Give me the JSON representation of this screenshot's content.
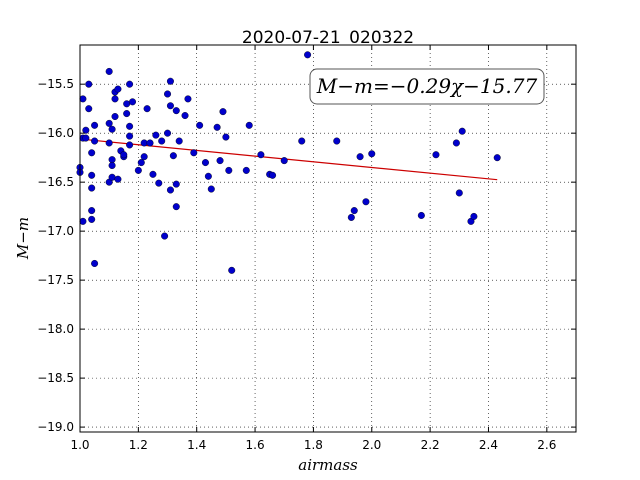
{
  "chart_data": {
    "type": "scatter",
    "title": "2020-07-21_020322",
    "xlabel": "airmass",
    "ylabel": "M−m",
    "xlim": [
      1.0,
      2.7
    ],
    "ylim": [
      -19.05,
      -15.1
    ],
    "y_inverted": true,
    "grid": true,
    "x_ticks": [
      "1.0",
      "1.2",
      "1.4",
      "1.6",
      "1.8",
      "2.0",
      "2.2",
      "2.4",
      "2.6"
    ],
    "y_ticks": [
      "−15.5",
      "−16.0",
      "−16.5",
      "−17.0",
      "−17.5",
      "−18.0",
      "−18.5",
      "−19.0"
    ],
    "annotation": "M−m=−0.29χ−15.77",
    "fit": {
      "slope": -0.29,
      "intercept": -15.77,
      "x_range": [
        1.01,
        2.43
      ],
      "color": "#cc0000"
    },
    "point_color": "#0000cc",
    "points": [
      [
        1.0,
        -16.35
      ],
      [
        1.0,
        -16.4
      ],
      [
        1.01,
        -15.65
      ],
      [
        1.01,
        -16.05
      ],
      [
        1.01,
        -16.9
      ],
      [
        1.02,
        -15.97
      ],
      [
        1.02,
        -16.05
      ],
      [
        1.03,
        -15.75
      ],
      [
        1.03,
        -15.5
      ],
      [
        1.04,
        -16.2
      ],
      [
        1.04,
        -16.43
      ],
      [
        1.04,
        -16.56
      ],
      [
        1.04,
        -16.79
      ],
      [
        1.04,
        -16.88
      ],
      [
        1.05,
        -15.92
      ],
      [
        1.05,
        -16.08
      ],
      [
        1.05,
        -17.33
      ],
      [
        1.1,
        -15.37
      ],
      [
        1.1,
        -15.9
      ],
      [
        1.1,
        -16.1
      ],
      [
        1.1,
        -16.5
      ],
      [
        1.11,
        -15.96
      ],
      [
        1.11,
        -16.27
      ],
      [
        1.11,
        -16.33
      ],
      [
        1.11,
        -16.45
      ],
      [
        1.12,
        -15.65
      ],
      [
        1.12,
        -15.83
      ],
      [
        1.12,
        -15.58
      ],
      [
        1.13,
        -15.55
      ],
      [
        1.13,
        -16.47
      ],
      [
        1.14,
        -16.18
      ],
      [
        1.15,
        -16.24
      ],
      [
        1.15,
        -16.22
      ],
      [
        1.16,
        -15.7
      ],
      [
        1.16,
        -15.8
      ],
      [
        1.17,
        -15.5
      ],
      [
        1.17,
        -15.93
      ],
      [
        1.17,
        -16.03
      ],
      [
        1.17,
        -16.12
      ],
      [
        1.18,
        -15.68
      ],
      [
        1.2,
        -16.38
      ],
      [
        1.21,
        -16.3
      ],
      [
        1.22,
        -16.1
      ],
      [
        1.22,
        -16.24
      ],
      [
        1.23,
        -15.75
      ],
      [
        1.24,
        -16.1
      ],
      [
        1.25,
        -16.42
      ],
      [
        1.26,
        -16.02
      ],
      [
        1.27,
        -16.51
      ],
      [
        1.28,
        -16.08
      ],
      [
        1.29,
        -17.05
      ],
      [
        1.3,
        -16.0
      ],
      [
        1.3,
        -15.6
      ],
      [
        1.31,
        -15.72
      ],
      [
        1.31,
        -15.47
      ],
      [
        1.31,
        -16.58
      ],
      [
        1.32,
        -16.23
      ],
      [
        1.33,
        -15.77
      ],
      [
        1.33,
        -16.52
      ],
      [
        1.33,
        -16.75
      ],
      [
        1.34,
        -16.08
      ],
      [
        1.36,
        -15.82
      ],
      [
        1.37,
        -15.65
      ],
      [
        1.39,
        -16.2
      ],
      [
        1.41,
        -15.92
      ],
      [
        1.43,
        -16.3
      ],
      [
        1.44,
        -16.44
      ],
      [
        1.45,
        -16.57
      ],
      [
        1.47,
        -15.94
      ],
      [
        1.48,
        -16.28
      ],
      [
        1.49,
        -15.78
      ],
      [
        1.5,
        -16.04
      ],
      [
        1.51,
        -16.38
      ],
      [
        1.52,
        -17.4
      ],
      [
        1.57,
        -16.38
      ],
      [
        1.58,
        -15.92
      ],
      [
        1.62,
        -16.22
      ],
      [
        1.65,
        -16.42
      ],
      [
        1.66,
        -16.43
      ],
      [
        1.7,
        -16.28
      ],
      [
        1.76,
        -16.08
      ],
      [
        1.78,
        -15.2
      ],
      [
        1.88,
        -16.08
      ],
      [
        1.93,
        -16.86
      ],
      [
        1.94,
        -16.79
      ],
      [
        1.96,
        -16.24
      ],
      [
        1.98,
        -16.7
      ],
      [
        2.0,
        -16.21
      ],
      [
        2.17,
        -16.84
      ],
      [
        2.22,
        -16.22
      ],
      [
        2.29,
        -16.1
      ],
      [
        2.3,
        -16.61
      ],
      [
        2.31,
        -15.98
      ],
      [
        2.34,
        -16.9
      ],
      [
        2.35,
        -16.85
      ],
      [
        2.43,
        -16.25
      ]
    ]
  }
}
